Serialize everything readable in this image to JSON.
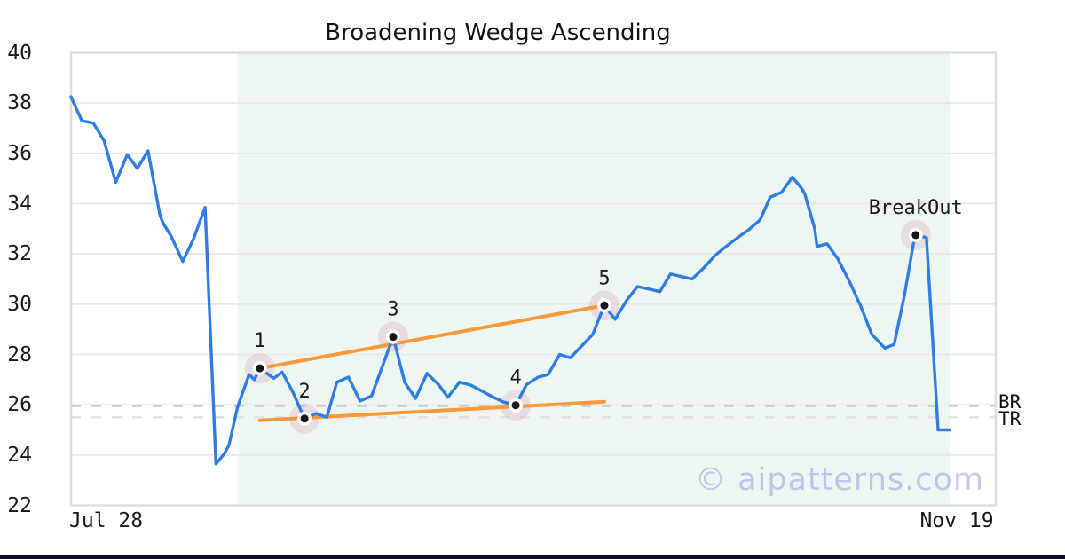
{
  "title": "Broadening Wedge Ascending",
  "watermark": "© aipatterns.com",
  "colors": {
    "line_blue": "#2d7de4",
    "trend_orange": "#f8993c",
    "shaded_region": "#eef6f1",
    "grid": "#e9e9e9",
    "plot_border": "#dedede",
    "pivot_halo": "rgba(214,160,183,0.30)",
    "pivot_dot": "#151515",
    "pivot_ring": "#ffffff",
    "bottom_bar": "#0f0f23",
    "br_level": "#cbcbcb",
    "tr_level": "#e0e0e0",
    "label_text": "#1a1a1a"
  },
  "chart_data": {
    "type": "line",
    "title": "Broadening Wedge Ascending",
    "grid": "horizontal",
    "legend": "none",
    "x_axis": {
      "start_label": "Jul 28",
      "end_label": "Nov 19",
      "days_span": 114
    },
    "y_axis": {
      "min": 22,
      "max": 40,
      "ticks": [
        40,
        38,
        36,
        34,
        32,
        30,
        28,
        26,
        24,
        22
      ],
      "gridline_ticks": [
        38,
        36,
        34,
        32,
        30,
        28,
        26,
        24
      ]
    },
    "shaded_region_days": {
      "from": 21.6,
      "to": 114
    },
    "series": [
      {
        "name": "price",
        "points": [
          [
            0,
            38.25
          ],
          [
            1.4,
            37.3
          ],
          [
            2.9,
            37.2
          ],
          [
            4.3,
            36.5
          ],
          [
            5.8,
            34.85
          ],
          [
            7.3,
            35.95
          ],
          [
            8.6,
            35.4
          ],
          [
            10,
            36.1
          ],
          [
            11.5,
            33.6
          ],
          [
            11.9,
            33.25
          ],
          [
            13,
            32.7
          ],
          [
            14.5,
            31.7
          ],
          [
            15.9,
            32.6
          ],
          [
            17.4,
            33.85
          ],
          [
            18.8,
            23.65
          ],
          [
            19.9,
            24.05
          ],
          [
            20.5,
            24.4
          ],
          [
            21.6,
            25.9
          ],
          [
            23.1,
            27.2
          ],
          [
            23.8,
            27.0
          ],
          [
            24.5,
            27.45
          ],
          [
            26.3,
            27.05
          ],
          [
            27.4,
            27.3
          ],
          [
            28.8,
            26.5
          ],
          [
            30.3,
            25.45
          ],
          [
            31.8,
            25.65
          ],
          [
            33.2,
            25.5
          ],
          [
            34.5,
            26.9
          ],
          [
            36,
            27.1
          ],
          [
            37.5,
            26.15
          ],
          [
            39,
            26.35
          ],
          [
            41.8,
            28.7
          ],
          [
            43.3,
            26.9
          ],
          [
            44.7,
            26.25
          ],
          [
            46.2,
            27.25
          ],
          [
            47.7,
            26.8
          ],
          [
            48.9,
            26.3
          ],
          [
            50.4,
            26.9
          ],
          [
            51.9,
            26.78
          ],
          [
            53.3,
            26.55
          ],
          [
            54.8,
            26.3
          ],
          [
            56.2,
            26.1
          ],
          [
            57.7,
            25.98
          ],
          [
            59.1,
            26.8
          ],
          [
            60.6,
            27.1
          ],
          [
            61.9,
            27.2
          ],
          [
            63.4,
            28.0
          ],
          [
            64.8,
            27.87
          ],
          [
            66.3,
            28.35
          ],
          [
            67.7,
            28.8
          ],
          [
            69.2,
            29.95
          ],
          [
            70.6,
            29.4
          ],
          [
            72.1,
            30.15
          ],
          [
            73.5,
            30.7
          ],
          [
            75,
            30.6
          ],
          [
            76.4,
            30.5
          ],
          [
            77.8,
            31.2
          ],
          [
            79.2,
            31.1
          ],
          [
            80.6,
            31.0
          ],
          [
            82.1,
            31.45
          ],
          [
            83.6,
            31.95
          ],
          [
            85,
            32.3
          ],
          [
            86.5,
            32.65
          ],
          [
            87.9,
            32.95
          ],
          [
            89.4,
            33.35
          ],
          [
            90.7,
            34.25
          ],
          [
            92.2,
            34.45
          ],
          [
            93.6,
            35.05
          ],
          [
            94.7,
            34.65
          ],
          [
            95.2,
            34.4
          ],
          [
            96.5,
            33.0
          ],
          [
            96.8,
            32.3
          ],
          [
            98.1,
            32.4
          ],
          [
            99.5,
            31.8
          ],
          [
            101,
            30.9
          ],
          [
            102.5,
            29.9
          ],
          [
            103.9,
            28.8
          ],
          [
            105.6,
            28.25
          ],
          [
            106.8,
            28.4
          ],
          [
            108.1,
            30.3
          ],
          [
            109.3,
            32.4
          ],
          [
            109.6,
            32.75
          ],
          [
            111,
            32.65
          ],
          [
            112.5,
            25.0
          ],
          [
            114,
            25.0
          ]
        ]
      }
    ],
    "pivots": [
      {
        "label": "1",
        "day": 24.5,
        "price": 27.45
      },
      {
        "label": "2",
        "day": 30.3,
        "price": 25.45
      },
      {
        "label": "3",
        "day": 41.8,
        "price": 28.7
      },
      {
        "label": "4",
        "day": 57.7,
        "price": 25.98
      },
      {
        "label": "5",
        "day": 69.2,
        "price": 29.95
      }
    ],
    "breakout": {
      "label": "BreakOut",
      "day": 109.6,
      "price": 32.75
    },
    "trendlines": [
      {
        "name": "upper",
        "from": [
          24.5,
          27.45
        ],
        "to": [
          69.2,
          29.95
        ]
      },
      {
        "name": "lower",
        "from": [
          24.5,
          25.38
        ],
        "to": [
          69.2,
          26.12
        ]
      }
    ],
    "levels": [
      {
        "label": "BR",
        "price": 25.95
      },
      {
        "label": "TR",
        "price": 25.5
      }
    ]
  }
}
